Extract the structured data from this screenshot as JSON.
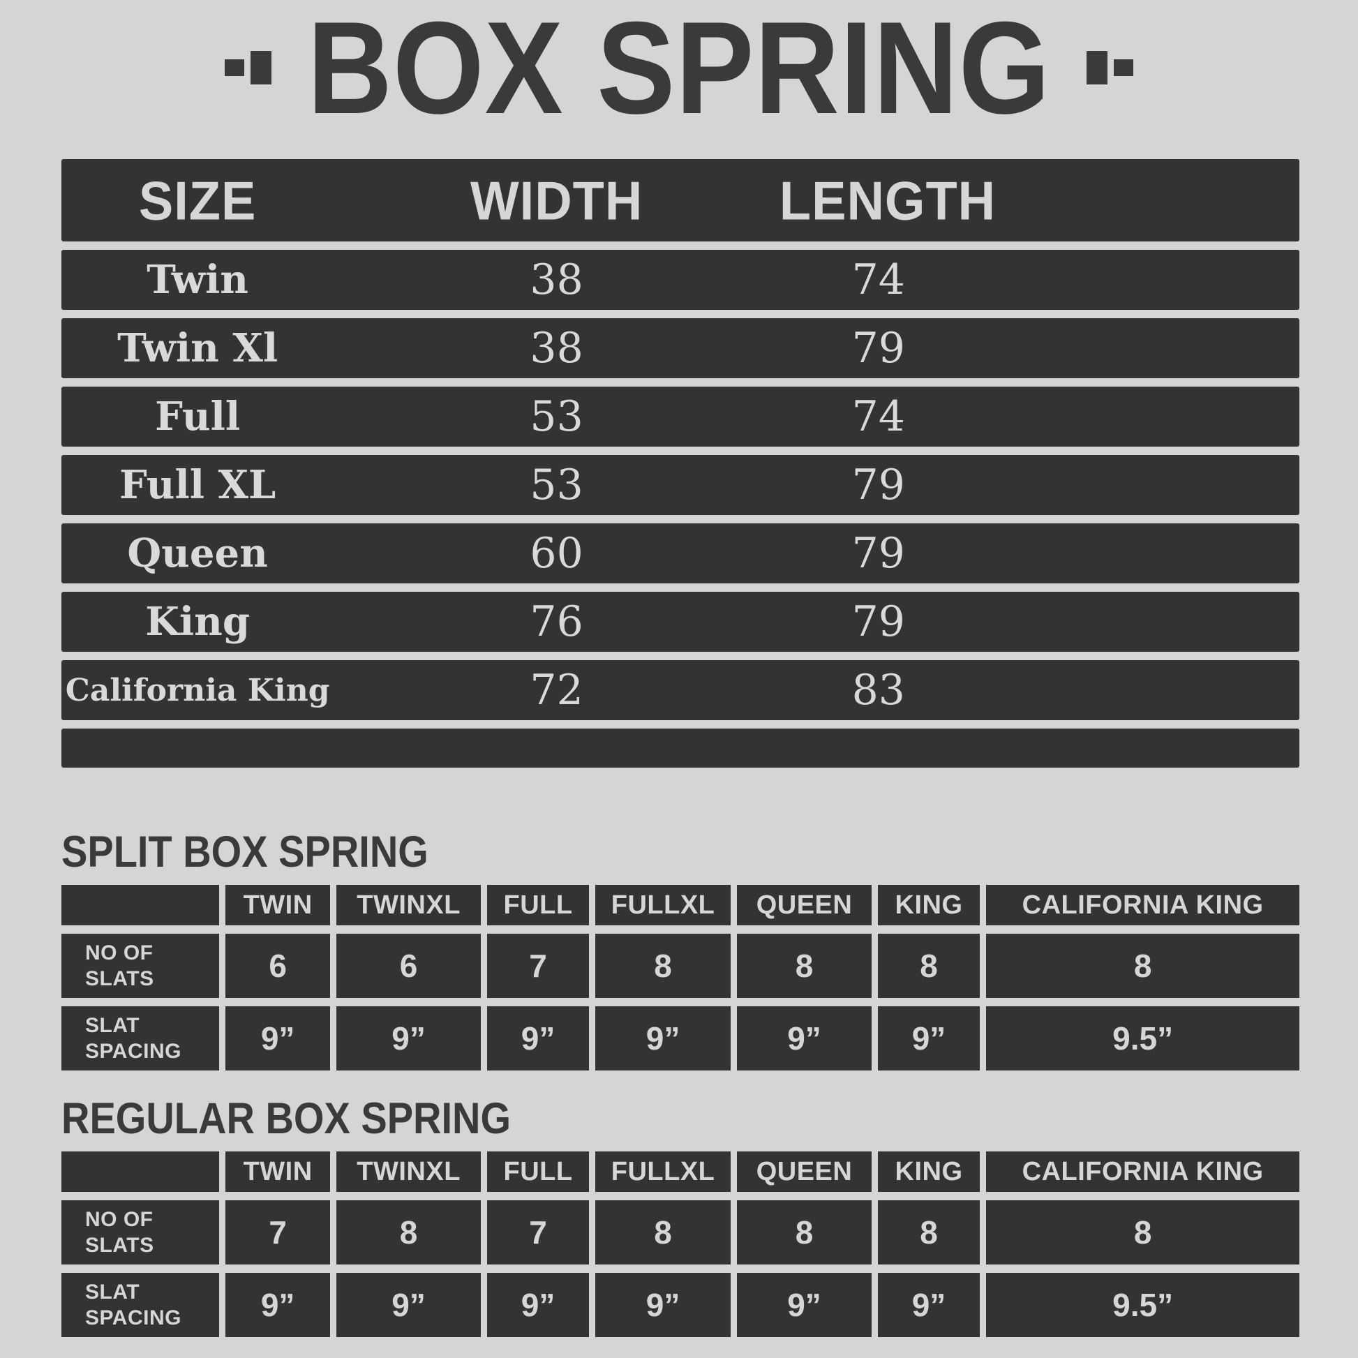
{
  "title": {
    "text": "BOX SPRING"
  },
  "size_table": {
    "headers": [
      "SIZE",
      "WIDTH",
      "LENGTH"
    ],
    "rows": [
      [
        "Twin",
        "38",
        "74"
      ],
      [
        "Twin Xl",
        "38",
        "79"
      ],
      [
        "Full",
        "53",
        "74"
      ],
      [
        "Full XL",
        "53",
        "79"
      ],
      [
        "Queen",
        "60",
        "79"
      ],
      [
        "King",
        "76",
        "79"
      ],
      [
        "California King",
        "72",
        "83"
      ]
    ]
  },
  "split_table": {
    "heading": "SPLIT BOX SPRING",
    "columns": [
      "TWIN",
      "TWINXL",
      "FULL",
      "FULLXL",
      "QUEEN",
      "KING",
      "CALIFORNIA KING"
    ],
    "rows": [
      {
        "label_lines": [
          "NO OF",
          "SLATS"
        ],
        "values": [
          "6",
          "6",
          "7",
          "8",
          "8",
          "8",
          "8"
        ]
      },
      {
        "label_lines": [
          "SLAT",
          "SPACING"
        ],
        "values": [
          "9”",
          "9”",
          "9”",
          "9”",
          "9”",
          "9”",
          "9.5”"
        ]
      }
    ]
  },
  "regular_table": {
    "heading": "REGULAR BOX SPRING",
    "columns": [
      "TWIN",
      "TWINXL",
      "FULL",
      "FULLXL",
      "QUEEN",
      "KING",
      "CALIFORNIA KING"
    ],
    "rows": [
      {
        "label_lines": [
          "NO OF",
          "SLATS"
        ],
        "values": [
          "7",
          "8",
          "7",
          "8",
          "8",
          "8",
          "8"
        ]
      },
      {
        "label_lines": [
          "SLAT",
          "SPACING"
        ],
        "values": [
          "9”",
          "9”",
          "9”",
          "9”",
          "9”",
          "9”",
          "9.5”"
        ]
      }
    ]
  },
  "colors": {
    "background": "#d5d5d5",
    "panel": "#333333",
    "text_on_dark": "#d9d9d9",
    "text_dark": "#3a3a3a"
  }
}
